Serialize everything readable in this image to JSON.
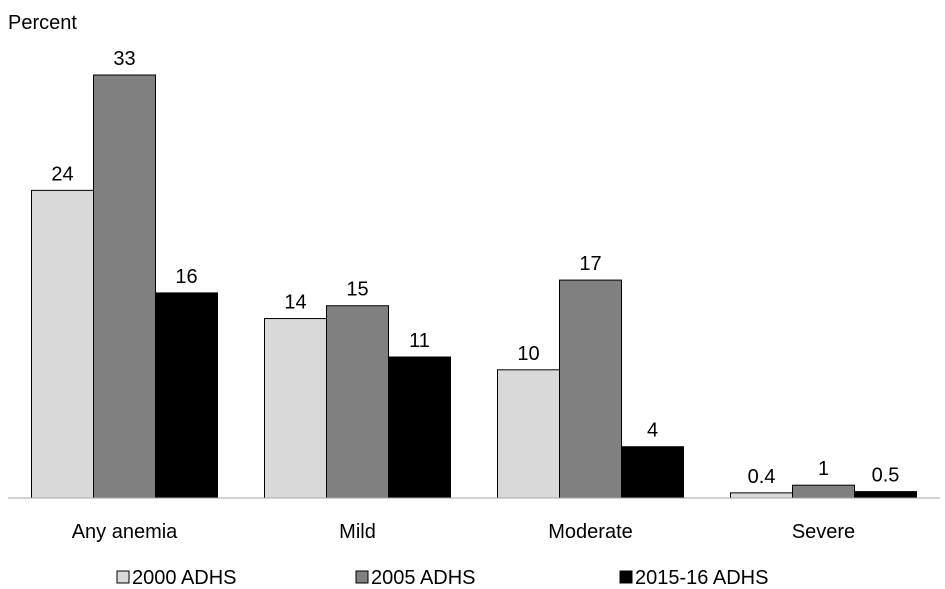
{
  "chart_data": {
    "type": "bar",
    "ylabel": "Percent",
    "categories": [
      "Any anemia",
      "Mild",
      "Moderate",
      "Severe"
    ],
    "series": [
      {
        "name": "2000 ADHS",
        "color": "#d9d9d9",
        "values": [
          24,
          14,
          10,
          0.4
        ],
        "labels": [
          "24",
          "14",
          "10",
          "0.4"
        ]
      },
      {
        "name": "2005 ADHS",
        "color": "#808080",
        "values": [
          33,
          15,
          17,
          1
        ],
        "labels": [
          "33",
          "15",
          "17",
          "1"
        ]
      },
      {
        "name": "2015-16 ADHS",
        "color": "#000000",
        "values": [
          16,
          11,
          4,
          0.5
        ],
        "labels": [
          "16",
          "11",
          "4",
          "0.5"
        ]
      }
    ],
    "ylim": [
      0,
      33
    ],
    "grid": false,
    "legend_position": "bottom"
  }
}
